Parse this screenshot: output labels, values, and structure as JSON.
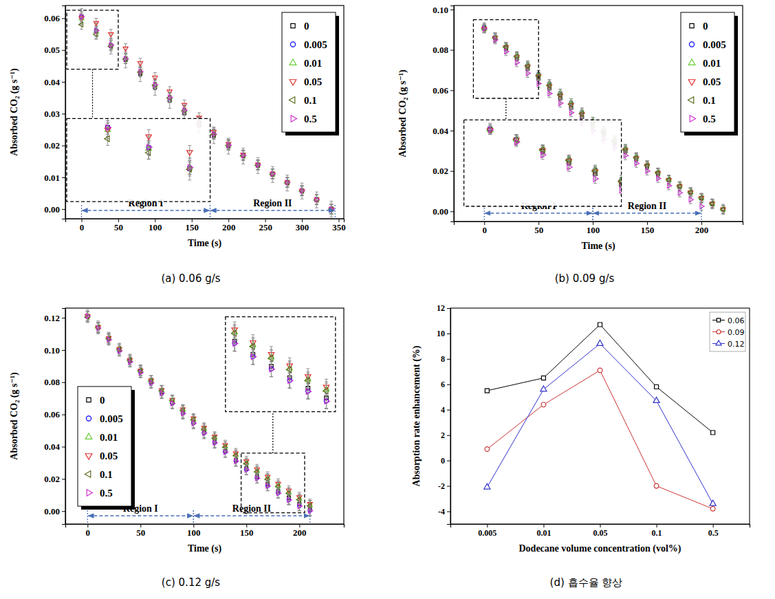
{
  "chart_data": [
    {
      "type": "scatter",
      "title": "(a) 0.06 g/s",
      "xlabel": "Time (s)",
      "ylabel": "Absorbed CO₂ (g s⁻¹)",
      "xlim": [
        -22,
        357
      ],
      "xticks": [
        0,
        50,
        100,
        150,
        200,
        250,
        300,
        350
      ],
      "ylim": [
        -0.003,
        0.064
      ],
      "yticks": [
        {
          "value": 0,
          "label": "0.00"
        },
        0.01,
        0.02,
        0.03,
        0.04,
        0.05,
        0.06
      ],
      "legend": "upper right",
      "x": [
        0,
        20,
        40,
        60,
        80,
        100,
        120,
        140,
        160,
        180,
        200,
        220,
        240,
        260,
        280,
        300,
        320,
        340
      ],
      "series": [
        {
          "name": "0",
          "color": "#000000",
          "marker": "square",
          "error": 0.0025,
          "values": [
            0.0605,
            0.056,
            0.0513,
            0.0469,
            0.0426,
            0.0383,
            0.0342,
            0.0302,
            0.0265,
            0.0231,
            0.0198,
            0.0167,
            0.0137,
            0.0109,
            0.0082,
            0.0057,
            0.0029,
            0
          ]
        },
        {
          "name": "0.005",
          "color": "#0000ff",
          "marker": "circle",
          "error": 0.0015,
          "values": [
            0.0605,
            0.0561,
            0.0516,
            0.0473,
            0.0431,
            0.039,
            0.035,
            0.031,
            0.0272,
            0.0236,
            0.0201,
            0.0169,
            0.0139,
            0.0111,
            0.0084,
            0.0058,
            0.003,
            0
          ]
        },
        {
          "name": "0.01",
          "color": "#66cc33",
          "marker": "triangle-up",
          "error": 0.0015,
          "values": [
            0.06,
            0.0558,
            0.0516,
            0.0474,
            0.0432,
            0.0391,
            0.0351,
            0.0311,
            0.0273,
            0.0237,
            0.0202,
            0.017,
            0.014,
            0.0112,
            0.0085,
            0.0059,
            0.0031,
            0
          ]
        },
        {
          "name": "0.05",
          "color": "#e03030",
          "marker": "triangle-down",
          "error": 0.0015,
          "values": [
            0.06,
            0.0585,
            0.055,
            0.0505,
            0.0459,
            0.0414,
            0.037,
            0.0328,
            0.0288,
            0.0243,
            0.0205,
            0.0171,
            0.014,
            0.0111,
            0.0084,
            0.0058,
            0.003,
            0
          ]
        },
        {
          "name": "0.1",
          "color": "#5a6e1e",
          "marker": "triangle-left",
          "error": 0.0015,
          "values": [
            0.058,
            0.0549,
            0.0512,
            0.0472,
            0.0431,
            0.039,
            0.035,
            0.031,
            0.0272,
            0.0235,
            0.02,
            0.0168,
            0.0138,
            0.011,
            0.0083,
            0.0057,
            0.0029,
            0
          ]
        },
        {
          "name": "0.5",
          "color": "#cc33cc",
          "marker": "triangle-right",
          "error": 0.0015,
          "values": [
            0.0605,
            0.0561,
            0.0516,
            0.0473,
            0.0432,
            0.0391,
            0.0351,
            0.0311,
            0.0273,
            0.0236,
            0.0201,
            0.0169,
            0.0139,
            0.0111,
            0.0084,
            0.0058,
            0.003,
            0
          ]
        }
      ],
      "regions": [
        {
          "label": "Region I",
          "x": [
            0,
            175
          ]
        },
        {
          "label": "Region II",
          "x": [
            175,
            345
          ]
        }
      ],
      "inset": {
        "xlim": [
          -20,
          50
        ],
        "ylim": [
          0.044,
          0.0625
        ]
      }
    },
    {
      "type": "scatter",
      "title": "(b) 0.09 g/s",
      "xlabel": "Time (s)",
      "ylabel": "Absorbed CO₂ (g s⁻¹)",
      "xlim": [
        -28,
        238
      ],
      "xticks": [
        0,
        50,
        100,
        150,
        200
      ],
      "ylim": [
        -0.005,
        0.102
      ],
      "yticks": [
        {
          "value": 0,
          "label": "0.00"
        },
        0.02,
        0.04,
        0.06,
        0.08,
        {
          "value": 0.1,
          "label": "0.10"
        }
      ],
      "legend": "upper right",
      "x": [
        0,
        10,
        20,
        30,
        40,
        50,
        60,
        70,
        80,
        90,
        100,
        110,
        120,
        130,
        140,
        150,
        160,
        170,
        180,
        190,
        200,
        210,
        220
      ],
      "series": [
        {
          "name": "0",
          "color": "#000000",
          "marker": "square",
          "error": 0.0025,
          "values": [
            0.091,
            0.086,
            0.0808,
            0.0757,
            0.0707,
            0.0658,
            0.0609,
            0.0561,
            0.0514,
            0.0468,
            0.0423,
            0.038,
            0.0338,
            0.0298,
            0.0259,
            0.0222,
            0.0187,
            0.0154,
            0.0122,
            0.0093,
            0.0065,
            0.0037,
            0.001
          ]
        },
        {
          "name": "0.005",
          "color": "#0000ff",
          "marker": "circle",
          "error": 0.002,
          "values": [
            0.091,
            0.0864,
            0.0817,
            0.077,
            0.0724,
            0.0678,
            0.0632,
            0.0585,
            0.0538,
            0.0491,
            0.0445,
            0.0398,
            0.0353,
            0.031,
            0.0269,
            0.023,
            0.0193,
            0.0158,
            0.0125,
            0.0094,
            0.0065,
            0.0037,
            0.0008
          ]
        },
        {
          "name": "0.01",
          "color": "#66cc33",
          "marker": "triangle-up",
          "error": 0.002,
          "values": [
            0.0905,
            0.0862,
            0.0818,
            0.0772,
            0.0726,
            0.0679,
            0.0632,
            0.0585,
            0.0538,
            0.0492,
            0.0446,
            0.04,
            0.0355,
            0.0312,
            0.0271,
            0.0232,
            0.0195,
            0.016,
            0.0127,
            0.0096,
            0.0067,
            0.0038,
            0.001
          ]
        },
        {
          "name": "0.05",
          "color": "#e03030",
          "marker": "triangle-down",
          "error": 0.002,
          "values": [
            0.0905,
            0.086,
            0.0813,
            0.0765,
            0.0717,
            0.0669,
            0.0621,
            0.0574,
            0.0527,
            0.0481,
            0.0435,
            0.039,
            0.0346,
            0.0304,
            0.0264,
            0.0226,
            0.019,
            0.0156,
            0.0124,
            0.0094,
            0.0066,
            0.0038,
            0.001
          ]
        },
        {
          "name": "0.1",
          "color": "#5a6e1e",
          "marker": "triangle-left",
          "error": 0.002,
          "values": [
            0.0905,
            0.0861,
            0.0815,
            0.0767,
            0.0719,
            0.0671,
            0.0623,
            0.0576,
            0.0529,
            0.0483,
            0.0437,
            0.0391,
            0.0347,
            0.0305,
            0.0265,
            0.0227,
            0.0191,
            0.0157,
            0.0125,
            0.0095,
            0.0067,
            0.0039,
            0.001
          ]
        },
        {
          "name": "0.5",
          "color": "#cc33cc",
          "marker": "triangle-right",
          "error": 0.002,
          "values": [
            0.0905,
            0.085,
            0.0792,
            0.0737,
            0.0684,
            0.0633,
            0.0584,
            0.0536,
            0.0489,
            0.0444,
            0.04,
            0.0357,
            0.0316,
            0.0276,
            0.0238,
            0.02,
            0.0163,
            0.0127,
            0.0092,
            0.0058,
            0.0025,
            null,
            null
          ]
        }
      ],
      "regions": [
        {
          "label": "Region I",
          "x": [
            0,
            100
          ]
        },
        {
          "label": "Region II",
          "x": [
            100,
            200
          ]
        }
      ],
      "inset": {
        "xlim": [
          -10,
          50
        ],
        "ylim": [
          0.056,
          0.095
        ]
      }
    },
    {
      "type": "scatter",
      "title": "(c) 0.12 g/s",
      "xlabel": "Time (s)",
      "ylabel": "Absorbed CO₂ (g s⁻¹)",
      "xlim": [
        -21,
        242
      ],
      "xticks": [
        0,
        50,
        100,
        150,
        200
      ],
      "ylim": [
        -0.008,
        0.126
      ],
      "yticks": [
        {
          "value": 0,
          "label": "0.00"
        },
        0.02,
        0.04,
        0.06,
        0.08,
        {
          "value": 0.1,
          "label": "0.10"
        },
        0.12
      ],
      "legend": "lower left",
      "x": [
        0,
        10,
        20,
        30,
        40,
        50,
        60,
        70,
        80,
        90,
        100,
        110,
        120,
        130,
        140,
        150,
        160,
        170,
        180,
        190,
        200,
        210
      ],
      "series": [
        {
          "name": "0",
          "color": "#000000",
          "marker": "square",
          "error": 0.004,
          "values": [
            0.121,
            0.114,
            0.107,
            0.1002,
            0.0934,
            0.0868,
            0.0802,
            0.0738,
            0.0674,
            0.0611,
            0.055,
            0.0489,
            0.043,
            0.0373,
            0.0318,
            0.0265,
            0.0214,
            0.0167,
            0.0123,
            0.0082,
            0.0044,
            0.001
          ]
        },
        {
          "name": "0.005",
          "color": "#0000ff",
          "marker": "circle",
          "error": 0.003,
          "values": [
            0.121,
            0.1138,
            0.1066,
            0.0996,
            0.0928,
            0.0862,
            0.0797,
            0.0733,
            0.067,
            0.0608,
            0.0547,
            0.0485,
            0.0425,
            0.0367,
            0.0311,
            0.0257,
            0.0205,
            0.0157,
            0.0112,
            0.007,
            0.0032,
            0.0003
          ]
        },
        {
          "name": "0.01",
          "color": "#66cc33",
          "marker": "triangle-up",
          "error": 0.003,
          "values": [
            0.121,
            0.1142,
            0.1074,
            0.1006,
            0.0938,
            0.0872,
            0.081,
            0.0749,
            0.0688,
            0.0628,
            0.057,
            0.0512,
            0.0456,
            0.0402,
            0.035,
            0.03,
            0.025,
            0.0203,
            0.0159,
            0.0117,
            0.0077,
            0.0037
          ]
        },
        {
          "name": "0.05",
          "color": "#e03030",
          "marker": "triangle-down",
          "error": 0.003,
          "values": [
            0.121,
            0.1142,
            0.1074,
            0.1006,
            0.0938,
            0.0872,
            0.0811,
            0.0751,
            0.0691,
            0.0632,
            0.0575,
            0.0518,
            0.0463,
            0.041,
            0.0359,
            0.031,
            0.026,
            0.0214,
            0.017,
            0.0128,
            0.0087,
            0.0045
          ]
        },
        {
          "name": "0.1",
          "color": "#5a6e1e",
          "marker": "triangle-left",
          "error": 0.003,
          "values": [
            0.1205,
            0.114,
            0.1072,
            0.1005,
            0.0938,
            0.0872,
            0.0809,
            0.0748,
            0.0687,
            0.0626,
            0.0568,
            0.0509,
            0.0453,
            0.0398,
            0.0346,
            0.0295,
            0.0244,
            0.0198,
            0.0154,
            0.0111,
            0.0071,
            0.0033
          ]
        },
        {
          "name": "0.5",
          "color": "#cc33cc",
          "marker": "triangle-right",
          "error": 0.003,
          "values": [
            0.121,
            0.1136,
            0.1064,
            0.0994,
            0.0926,
            0.086,
            0.0795,
            0.0731,
            0.0668,
            0.0606,
            0.0545,
            0.0484,
            0.0424,
            0.0366,
            0.031,
            0.0256,
            0.0204,
            0.0156,
            0.0111,
            0.0069,
            0.0031,
            0.0002
          ]
        }
      ],
      "regions": [
        {
          "label": "Region I",
          "x": [
            0,
            100
          ]
        },
        {
          "label": "Region II",
          "x": [
            100,
            210
          ]
        }
      ],
      "inset": {
        "xlim": [
          145,
          205
        ],
        "ylim": [
          -0.001,
          0.036
        ]
      }
    },
    {
      "type": "line",
      "title": "(d) 흡수율 향상",
      "xlabel": "Dodecane volume concentration (vol%)",
      "ylabel": "Absorption rate enhancement (%)",
      "categories": [
        "0.005",
        "0.01",
        "0.05",
        "0.1",
        "0.5"
      ],
      "ylim": [
        -5,
        12
      ],
      "yticks": [
        -4,
        -2,
        0,
        2,
        4,
        6,
        8,
        10,
        12
      ],
      "legend": "upper right",
      "series": [
        {
          "name": "0.06",
          "color": "#000000",
          "marker": "square",
          "line_style": "solid",
          "values": [
            5.5,
            6.5,
            10.7,
            5.8,
            2.2
          ]
        },
        {
          "name": "0.09",
          "color": "#cc3333",
          "marker": "circle",
          "line_style": "solid",
          "values": [
            0.9,
            4.4,
            7.1,
            -2.0,
            -3.8
          ]
        },
        {
          "name": "0.12",
          "color": "#3333cc",
          "marker": "triangle-up",
          "line_style": "solid",
          "values": [
            -2.1,
            5.6,
            9.2,
            4.7,
            -3.4
          ]
        }
      ]
    }
  ]
}
